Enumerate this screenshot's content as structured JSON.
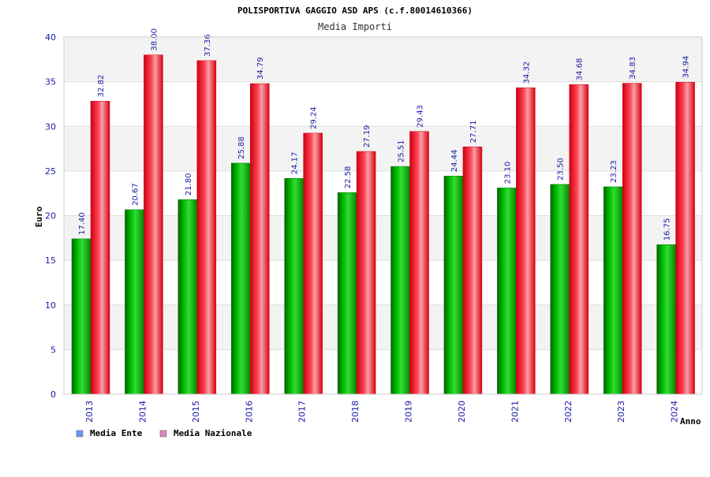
{
  "chart_data": {
    "type": "bar",
    "title": "POLISPORTIVA GAGGIO ASD APS (c.f.80014610366)",
    "subtitle": "Media Importi",
    "xlabel": "Anno",
    "ylabel": "Euro",
    "ylim": [
      0,
      40
    ],
    "yticks": [
      0,
      5,
      10,
      15,
      20,
      25,
      30,
      35,
      40
    ],
    "grid": true,
    "legend_placement": "bottom-left",
    "categories": [
      "2013",
      "2014",
      "2015",
      "2016",
      "2017",
      "2018",
      "2019",
      "2020",
      "2021",
      "2022",
      "2023",
      "2024"
    ],
    "series": [
      {
        "name": "Media Ente",
        "color": "#00aa00",
        "legend_color": "#6699ee",
        "values": [
          17.4,
          20.67,
          21.8,
          25.88,
          24.17,
          22.58,
          25.51,
          24.44,
          23.1,
          23.5,
          23.23,
          16.75
        ]
      },
      {
        "name": "Media Nazionale",
        "color": "#ee1122",
        "legend_color": "#dd88bb",
        "values": [
          32.82,
          38.0,
          37.36,
          34.79,
          29.24,
          27.19,
          29.43,
          27.71,
          34.32,
          34.68,
          34.83,
          34.94
        ]
      }
    ]
  }
}
